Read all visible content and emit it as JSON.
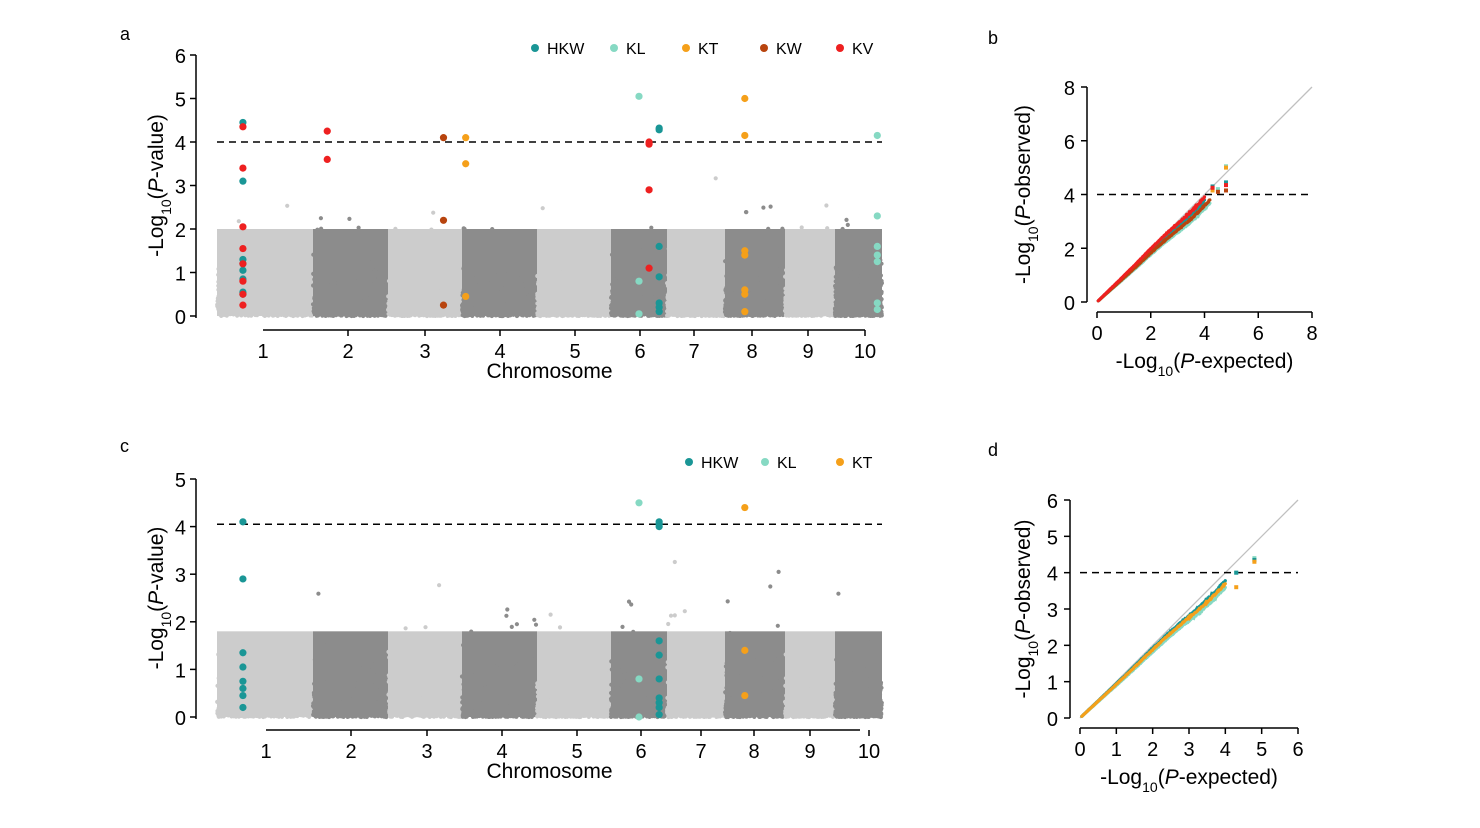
{
  "colors": {
    "HKW": "#1a9696",
    "KL": "#86d9c3",
    "KT": "#f5a01a",
    "KW": "#b8440e",
    "KV": "#ee2020",
    "light": "#cccccc",
    "dark": "#8c8c8c",
    "qqline": "#c0c0c0"
  },
  "chart_data": [
    {
      "panel": "a",
      "type": "scatter",
      "ylabel": {
        "pre": "-Log",
        "sub": "10",
        "mid": "(",
        "ital": "P",
        "post": "-value)"
      },
      "xlabel": "Chromosome",
      "ylim": [
        0,
        6
      ],
      "yticks": [
        "0",
        "1",
        "2",
        "3",
        "4",
        "5",
        "6"
      ],
      "chromosomes": [
        "1",
        "2",
        "3",
        "4",
        "5",
        "6",
        "7",
        "8",
        "9",
        "10"
      ],
      "threshold": 4,
      "legend": [
        {
          "name": "HKW",
          "color_key": "HKW"
        },
        {
          "name": "KL",
          "color_key": "KL"
        },
        {
          "name": "KT",
          "color_key": "KT"
        },
        {
          "name": "KW",
          "color_key": "KW"
        },
        {
          "name": "KV",
          "color_key": "KV"
        }
      ],
      "highlighted_snps": [
        {
          "chr": 1,
          "pos": 0.27,
          "trait": "HKW",
          "y": [
            4.45,
            3.1,
            1.3,
            1.2,
            1.05,
            0.85,
            0.55,
            0.5
          ]
        },
        {
          "chr": 1,
          "pos": 0.27,
          "trait": "KV",
          "y": [
            4.35,
            3.4,
            2.05,
            1.55,
            1.2,
            0.8,
            0.5,
            0.25
          ]
        },
        {
          "chr": 2,
          "pos": 0.19,
          "trait": "KV",
          "y": [
            4.25,
            3.6
          ]
        },
        {
          "chr": 3,
          "pos": 0.75,
          "trait": "KW",
          "y": [
            4.1,
            2.2,
            0.25
          ]
        },
        {
          "chr": 3,
          "pos": 1.05,
          "trait": "KT",
          "y": [
            4.1,
            3.5,
            0.45
          ]
        },
        {
          "chr": 6,
          "pos": 0.5,
          "trait": "KL",
          "y": [
            5.05,
            0.8,
            0.05
          ]
        },
        {
          "chr": 6,
          "pos": 0.68,
          "trait": "KV",
          "y": [
            4.0,
            3.95,
            2.9,
            1.1
          ]
        },
        {
          "chr": 6,
          "pos": 0.86,
          "trait": "HKW",
          "y": [
            4.32,
            4.28,
            1.6,
            0.9,
            0.3,
            0.2,
            0.1
          ]
        },
        {
          "chr": 8,
          "pos": 0.33,
          "trait": "KT",
          "y": [
            5.0,
            4.15,
            1.5,
            1.4,
            0.6,
            0.5,
            0.1
          ]
        },
        {
          "chr": 10,
          "pos": 0.9,
          "trait": "KL",
          "y": [
            4.15,
            2.3,
            1.6,
            1.4,
            1.25,
            0.3,
            0.15
          ]
        }
      ]
    },
    {
      "panel": "b",
      "type": "scatter",
      "xlabel": {
        "pre": "-Log",
        "sub": "10",
        "mid": "(",
        "ital": "P",
        "post": "-expected)"
      },
      "ylabel": {
        "pre": "-Log",
        "sub": "10",
        "mid": "(",
        "ital": "P",
        "post": "-observed)"
      },
      "xlim": [
        0,
        8
      ],
      "ylim": [
        0,
        8
      ],
      "xticks": [
        "0",
        "2",
        "4",
        "6",
        "8"
      ],
      "yticks": [
        "0",
        "2",
        "4",
        "6",
        "8"
      ],
      "threshold": 4,
      "qq_series": [
        {
          "trait": "KL",
          "max_x": 4.2,
          "factor": 0.87,
          "tail": [
            [
              4.5,
              4.2
            ],
            [
              4.8,
              5.05
            ]
          ]
        },
        {
          "trait": "KT",
          "max_x": 4.0,
          "factor": 0.92,
          "tail": [
            [
              4.3,
              4.15
            ],
            [
              4.8,
              5.0
            ]
          ]
        },
        {
          "trait": "HKW",
          "max_x": 4.0,
          "factor": 0.95,
          "tail": [
            [
              4.3,
              4.3
            ],
            [
              4.8,
              4.45
            ]
          ]
        },
        {
          "trait": "KW",
          "max_x": 4.2,
          "factor": 0.9,
          "tail": [
            [
              4.5,
              4.1
            ],
            [
              4.8,
              4.15
            ]
          ]
        },
        {
          "trait": "KV",
          "max_x": 4.0,
          "factor": 0.98,
          "tail": [
            [
              4.3,
              4.25
            ],
            [
              4.8,
              4.35
            ]
          ]
        }
      ]
    },
    {
      "panel": "c",
      "type": "scatter",
      "ylabel": {
        "pre": "-Log",
        "sub": "10",
        "mid": "(",
        "ital": "P",
        "post": "-value)"
      },
      "xlabel": "Chromosome",
      "ylim": [
        0,
        5
      ],
      "yticks": [
        "0",
        "1",
        "2",
        "3",
        "4",
        "5"
      ],
      "chromosomes": [
        "1",
        "2",
        "3",
        "4",
        "5",
        "6",
        "7",
        "8",
        "9",
        "10"
      ],
      "threshold": 4.05,
      "legend": [
        {
          "name": "HKW",
          "color_key": "HKW"
        },
        {
          "name": "KL",
          "color_key": "KL"
        },
        {
          "name": "KT",
          "color_key": "KT"
        }
      ],
      "highlighted_snps": [
        {
          "chr": 1,
          "pos": 0.27,
          "trait": "HKW",
          "y": [
            4.1,
            2.9,
            1.35,
            1.05,
            0.75,
            0.6,
            0.45,
            0.2
          ]
        },
        {
          "chr": 6,
          "pos": 0.5,
          "trait": "KL",
          "y": [
            4.5,
            0.8,
            0.0
          ]
        },
        {
          "chr": 6,
          "pos": 0.86,
          "trait": "HKW",
          "y": [
            4.1,
            4.05,
            4.0,
            1.6,
            1.3,
            0.8,
            0.4,
            0.3,
            0.2,
            0.05
          ]
        },
        {
          "chr": 8,
          "pos": 0.33,
          "trait": "KT",
          "y": [
            4.4,
            1.4,
            0.45
          ]
        }
      ]
    },
    {
      "panel": "d",
      "type": "scatter",
      "xlabel": {
        "pre": "-Log",
        "sub": "10",
        "mid": "(",
        "ital": "P",
        "post": "-expected)"
      },
      "ylabel": {
        "pre": "-Log",
        "sub": "10",
        "mid": "(",
        "ital": "P",
        "post": "-observed)"
      },
      "xlim": [
        0,
        6
      ],
      "ylim": [
        0,
        6
      ],
      "xticks": [
        "0",
        "1",
        "2",
        "3",
        "4",
        "5",
        "6"
      ],
      "yticks": [
        "0",
        "1",
        "2",
        "3",
        "4",
        "5",
        "6"
      ],
      "threshold": 4,
      "qq_series": [
        {
          "trait": "KL",
          "max_x": 4.0,
          "factor": 0.9,
          "tail": [
            [
              4.3,
              4.0
            ],
            [
              4.8,
              4.4
            ]
          ]
        },
        {
          "trait": "HKW",
          "max_x": 4.0,
          "factor": 0.95,
          "tail": [
            [
              4.3,
              4.0
            ],
            [
              4.8,
              4.35
            ]
          ]
        },
        {
          "trait": "KT",
          "max_x": 4.0,
          "factor": 0.93,
          "tail": [
            [
              4.3,
              3.6
            ],
            [
              4.8,
              4.3
            ]
          ]
        }
      ]
    }
  ]
}
